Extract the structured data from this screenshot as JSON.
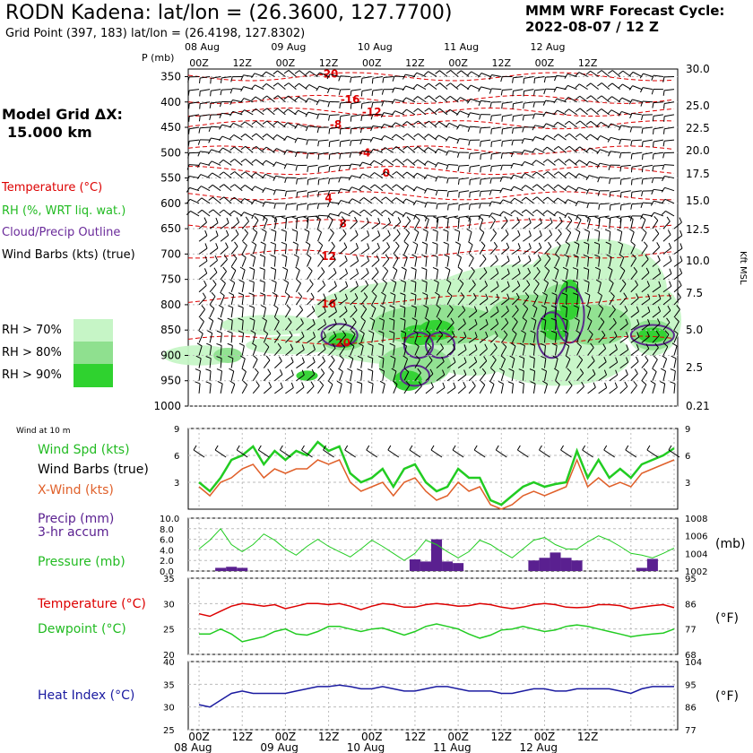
{
  "header": {
    "title": "RODN Kadena:  lat/lon = (26.3600, 127.7700)",
    "subtitle": "Grid Point (397, 183) lat/lon = (26.4198, 127.8302)",
    "cycle_line1": "MMM WRF Forecast Cycle:",
    "cycle_line2": "2022-08-07 / 12  Z"
  },
  "left_panel": {
    "model_grid_line1": "Model Grid ΔX:",
    "model_grid_line2": "15.000 km",
    "legend_temperature": "Temperature (°C)",
    "legend_rh": "RH (%, WRT liq. wat.)",
    "legend_cloud": "Cloud/Precip Outline",
    "legend_wind": "Wind Barbs (kts) (true)",
    "rh_70": "RH > 70%",
    "rh_80": "RH > 80%",
    "rh_90": "RH > 90%"
  },
  "colors": {
    "temperature": "#dd0000",
    "rh70": "#c6f5c6",
    "rh80": "#8fe08f",
    "rh90": "#2fd22f",
    "cloud": "#5a2a8a",
    "wind_speed": "#22cc22",
    "crosswind": "#e0602a",
    "precip": "#5a2090",
    "pressure": "#22cc22",
    "dewpoint": "#22cc22",
    "heat_index": "#1a1aa0"
  },
  "time_axis": {
    "dates": [
      "08 Aug",
      "09 Aug",
      "10 Aug",
      "11 Aug",
      "12 Aug"
    ],
    "hours": [
      "00Z",
      "12Z",
      "00Z",
      "12Z",
      "00Z",
      "12Z",
      "00Z",
      "12Z",
      "00Z",
      "12Z"
    ]
  },
  "chart_data": [
    {
      "type": "heatmap",
      "description_free": true,
      "ylabel": "P (mb)",
      "y2label": "Kft MSL",
      "pressure_ticks": [
        "350",
        "400",
        "450",
        "500",
        "550",
        "600",
        "650",
        "700",
        "750",
        "800",
        "850",
        "900",
        "950",
        "1000"
      ],
      "kft_ticks": [
        "30.0",
        "25.0",
        "22.5",
        "20.0",
        "17.5",
        "15.0",
        "12.5",
        "10.0",
        "7.5",
        "5.0",
        "2.5",
        "0.21"
      ],
      "temperature_labels": [
        {
          "text": "-20",
          "p": 345,
          "hour": 36
        },
        {
          "text": "-16",
          "p": 395,
          "hour": 42
        },
        {
          "text": "-12",
          "p": 420,
          "hour": 48
        },
        {
          "text": "-8",
          "p": 445,
          "hour": 38
        },
        {
          "text": "-4",
          "p": 500,
          "hour": 46
        },
        {
          "text": "0",
          "p": 540,
          "hour": 52
        },
        {
          "text": "4",
          "p": 590,
          "hour": 36
        },
        {
          "text": "8",
          "p": 640,
          "hour": 40
        },
        {
          "text": "12",
          "p": 705,
          "hour": 36
        },
        {
          "text": "16",
          "p": 798,
          "hour": 36
        },
        {
          "text": "20",
          "p": 875,
          "hour": 40
        }
      ]
    },
    {
      "type": "line",
      "label_small": "Wind at 10 m",
      "legend": [
        "Wind Spd (kts)",
        "Wind Barbs (true)",
        "X-Wind (kts)"
      ],
      "y_ticks": [
        "3",
        "6",
        "9"
      ],
      "ylim": [
        0,
        9
      ],
      "series": [
        {
          "name": "Wind Spd (kts)",
          "x_hours": [
            0,
            3,
            6,
            9,
            12,
            15,
            18,
            21,
            24,
            27,
            30,
            33,
            36,
            39,
            42,
            45,
            48,
            51,
            54,
            57,
            60,
            63,
            66,
            69,
            72,
            75,
            78,
            81,
            84,
            87,
            90,
            93,
            96,
            99,
            102,
            105,
            108,
            111,
            114,
            117,
            120,
            123,
            126,
            129,
            132
          ],
          "values": [
            3.0,
            2.0,
            3.5,
            5.5,
            6.0,
            7.0,
            5.0,
            6.5,
            5.5,
            6.5,
            6.0,
            7.5,
            6.5,
            7.0,
            4.0,
            3.0,
            3.5,
            4.5,
            2.5,
            4.5,
            5.0,
            3.0,
            2.0,
            2.5,
            4.5,
            3.5,
            3.5,
            1.0,
            0.5,
            1.5,
            2.5,
            3.0,
            2.5,
            2.8,
            3.0,
            6.5,
            3.5,
            5.5,
            3.5,
            4.5,
            3.5,
            5.0,
            5.5,
            6.0,
            6.8
          ]
        },
        {
          "name": "X-Wind (kts)",
          "x_hours": [
            0,
            3,
            6,
            9,
            12,
            15,
            18,
            21,
            24,
            27,
            30,
            33,
            36,
            39,
            42,
            45,
            48,
            51,
            54,
            57,
            60,
            63,
            66,
            69,
            72,
            75,
            78,
            81,
            84,
            87,
            90,
            93,
            96,
            99,
            102,
            105,
            108,
            111,
            114,
            117,
            120,
            123,
            126,
            129,
            132
          ],
          "values": [
            2.5,
            1.5,
            3.0,
            3.5,
            4.5,
            5.0,
            3.5,
            4.5,
            4.0,
            4.5,
            4.5,
            5.5,
            5.0,
            5.5,
            3.0,
            2.0,
            2.5,
            3.0,
            1.5,
            3.0,
            3.5,
            2.0,
            1.0,
            1.5,
            3.0,
            2.0,
            2.5,
            0.5,
            0.0,
            0.5,
            1.5,
            2.0,
            1.5,
            2.0,
            2.5,
            5.5,
            2.5,
            3.5,
            2.5,
            3.0,
            2.5,
            4.0,
            4.5,
            5.0,
            5.5
          ]
        }
      ]
    },
    {
      "type": "bar",
      "legend_precip_line1": "Precip (mm)",
      "legend_precip_line2": "3-hr accum",
      "legend_pressure": "Pressure (mb)",
      "y_ticks": [
        "0.0",
        "2.0",
        "4.0",
        "6.0",
        "8.0",
        "10.0"
      ],
      "y2_ticks": [
        "1002",
        "1004",
        "1006",
        "1008"
      ],
      "y2label": "(mb)",
      "ylim": [
        0,
        10
      ],
      "y2lim": [
        1002,
        1008
      ],
      "precip": {
        "x_hours": [
          6,
          9,
          12,
          60,
          63,
          66,
          69,
          72,
          93,
          96,
          99,
          102,
          105,
          123,
          126
        ],
        "values": [
          0.6,
          0.8,
          0.6,
          2.2,
          1.8,
          6.0,
          1.8,
          1.5,
          2.0,
          2.5,
          3.5,
          2.5,
          2.0,
          0.6,
          2.3
        ]
      },
      "pressure": {
        "x_hours": [
          0,
          3,
          6,
          9,
          12,
          15,
          18,
          21,
          24,
          27,
          30,
          33,
          36,
          39,
          42,
          45,
          48,
          51,
          54,
          57,
          60,
          63,
          66,
          69,
          72,
          75,
          78,
          81,
          84,
          87,
          90,
          93,
          96,
          99,
          102,
          105,
          108,
          111,
          114,
          117,
          120,
          123,
          126,
          129,
          132
        ],
        "values": [
          1004.5,
          1005.5,
          1006.8,
          1005.0,
          1004.2,
          1005.0,
          1006.2,
          1005.5,
          1004.5,
          1003.8,
          1004.8,
          1005.6,
          1004.8,
          1004.2,
          1003.6,
          1004.5,
          1005.5,
          1004.8,
          1004.0,
          1003.2,
          1004.0,
          1005.5,
          1005.0,
          1004.2,
          1003.5,
          1004.2,
          1005.5,
          1005.0,
          1004.2,
          1003.5,
          1004.5,
          1005.5,
          1005.8,
          1005.0,
          1004.5,
          1004.5,
          1005.3,
          1006.0,
          1005.5,
          1004.8,
          1004.0,
          1003.8,
          1003.5,
          1004.0,
          1004.6
        ]
      }
    },
    {
      "type": "line",
      "legend": [
        "Temperature (°C)",
        "Dewpoint (°C)"
      ],
      "y_ticks": [
        "20",
        "25",
        "30",
        "35"
      ],
      "y2_ticks": [
        "68",
        "77",
        "86",
        "95"
      ],
      "y2label": "(°F)",
      "ylim": [
        20,
        35
      ],
      "series": [
        {
          "name": "Temperature (°C)",
          "x_hours": [
            0,
            3,
            6,
            9,
            12,
            15,
            18,
            21,
            24,
            27,
            30,
            33,
            36,
            39,
            42,
            45,
            48,
            51,
            54,
            57,
            60,
            63,
            66,
            69,
            72,
            75,
            78,
            81,
            84,
            87,
            90,
            93,
            96,
            99,
            102,
            105,
            108,
            111,
            114,
            117,
            120,
            123,
            126,
            129,
            132
          ],
          "values": [
            28.0,
            27.5,
            28.5,
            29.5,
            30.0,
            29.8,
            29.5,
            29.8,
            29.0,
            29.5,
            30.0,
            30.0,
            29.8,
            30.0,
            29.5,
            28.8,
            29.5,
            30.0,
            29.8,
            29.3,
            29.3,
            29.8,
            30.0,
            29.8,
            29.5,
            29.6,
            30.0,
            29.8,
            29.3,
            29.0,
            29.3,
            29.8,
            30.0,
            29.8,
            29.3,
            29.2,
            29.3,
            29.8,
            29.8,
            29.6,
            29.0,
            29.3,
            29.6,
            29.8,
            29.2
          ]
        },
        {
          "name": "Dewpoint (°C)",
          "x_hours": [
            0,
            3,
            6,
            9,
            12,
            15,
            18,
            21,
            24,
            27,
            30,
            33,
            36,
            39,
            42,
            45,
            48,
            51,
            54,
            57,
            60,
            63,
            66,
            69,
            72,
            75,
            78,
            81,
            84,
            87,
            90,
            93,
            96,
            99,
            102,
            105,
            108,
            111,
            114,
            117,
            120,
            123,
            126,
            129,
            132
          ],
          "values": [
            24.0,
            24.0,
            25.0,
            24.0,
            22.5,
            23.0,
            23.5,
            24.5,
            25.0,
            24.0,
            23.8,
            24.5,
            25.5,
            25.5,
            25.0,
            24.5,
            25.0,
            25.2,
            24.5,
            23.8,
            24.5,
            25.5,
            26.0,
            25.5,
            25.0,
            24.0,
            23.2,
            23.8,
            24.8,
            25.0,
            25.5,
            25.0,
            24.5,
            24.8,
            25.5,
            25.8,
            25.5,
            25.0,
            24.5,
            24.0,
            23.5,
            23.8,
            24.0,
            24.2,
            25.0
          ]
        }
      ]
    },
    {
      "type": "line",
      "legend": [
        "Heat Index (°C)"
      ],
      "y_ticks": [
        "25",
        "30",
        "35",
        "40"
      ],
      "y2_ticks": [
        "77",
        "86",
        "95",
        "104"
      ],
      "y2label": "(°F)",
      "ylim": [
        25,
        40
      ],
      "series": [
        {
          "name": "Heat Index (°C)",
          "x_hours": [
            0,
            3,
            6,
            9,
            12,
            15,
            18,
            21,
            24,
            27,
            30,
            33,
            36,
            39,
            42,
            45,
            48,
            51,
            54,
            57,
            60,
            63,
            66,
            69,
            72,
            75,
            78,
            81,
            84,
            87,
            90,
            93,
            96,
            99,
            102,
            105,
            108,
            111,
            114,
            117,
            120,
            123,
            126,
            129,
            132
          ],
          "values": [
            30.5,
            30.0,
            31.5,
            33.0,
            33.5,
            33.0,
            33.0,
            33.0,
            33.0,
            33.5,
            34.0,
            34.5,
            34.5,
            34.8,
            34.5,
            34.0,
            34.0,
            34.5,
            34.0,
            33.5,
            33.5,
            34.0,
            34.5,
            34.5,
            34.0,
            33.5,
            33.5,
            33.5,
            33.0,
            33.0,
            33.5,
            34.0,
            34.0,
            33.5,
            33.5,
            34.0,
            34.0,
            34.0,
            34.0,
            33.5,
            33.0,
            34.0,
            34.5,
            34.5,
            34.5
          ]
        }
      ]
    }
  ]
}
